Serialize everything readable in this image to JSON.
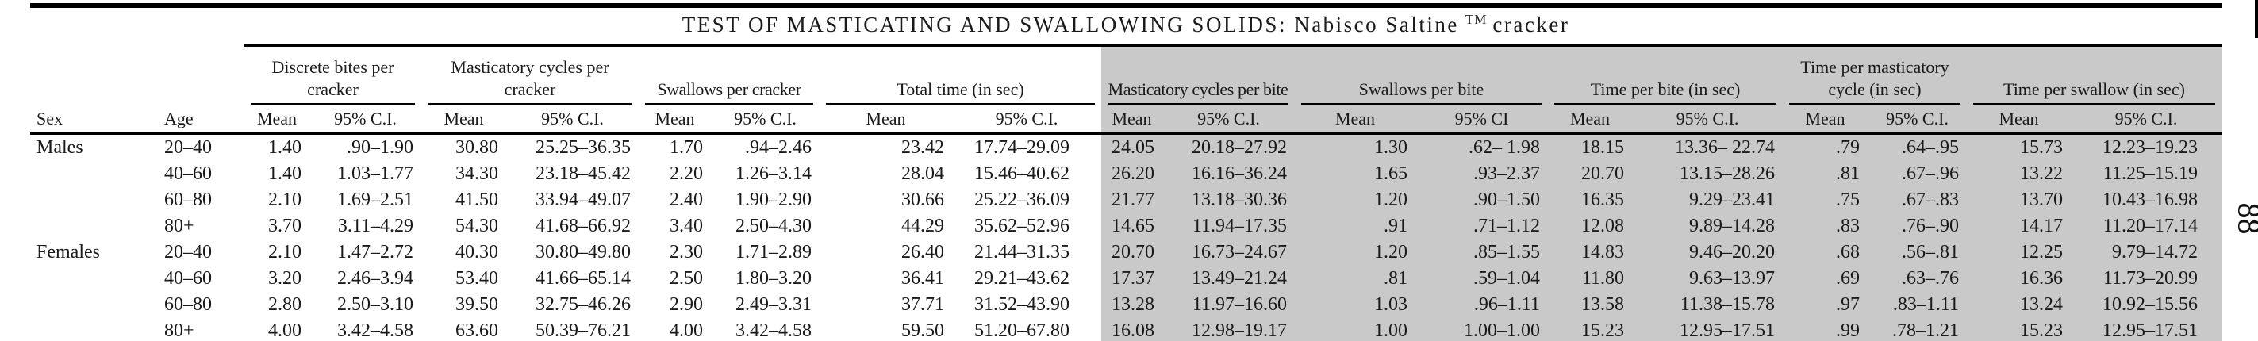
{
  "title": {
    "main": "TEST OF MASTICATING AND SWALLOWING SOLIDS: Nabisco Saltine",
    "trademark": "TM",
    "suffix": "cracker"
  },
  "page_number": "88",
  "colors": {
    "shaded_column_bg": "#c9c9c9",
    "rule": "#000000",
    "text": "#1a1a1a"
  },
  "header": {
    "sex_label": "Sex",
    "age_label": "Age",
    "groups": [
      {
        "label": "Discrete bites per cracker",
        "mean": "Mean",
        "ci": "95% C.I.",
        "shaded": false
      },
      {
        "label": "Masticatory cycles per cracker",
        "mean": "Mean",
        "ci": "95% C.I.",
        "shaded": false
      },
      {
        "label": "Swallows per cracker",
        "mean": "Mean",
        "ci": "95% C.I.",
        "shaded": false
      },
      {
        "label": "Total time (in sec)",
        "mean": "Mean",
        "ci": "95% C.I.",
        "shaded": false
      },
      {
        "label": "Masticatory cycles per bite",
        "mean": "Mean",
        "ci": "95% C.I.",
        "shaded": true
      },
      {
        "label": "Swallows per bite",
        "mean": "Mean",
        "ci": "95% CI",
        "shaded": true
      },
      {
        "label": "Time per bite (in sec)",
        "mean": "Mean",
        "ci": "95% C.I.",
        "shaded": true
      },
      {
        "label": "Time per masticatory cycle (in sec)",
        "mean": "Mean",
        "ci": "95% C.I.",
        "shaded": true
      },
      {
        "label": "Time per swallow (in sec)",
        "mean": "Mean",
        "ci": "95% C.I.",
        "shaded": true
      }
    ]
  },
  "rows": [
    {
      "sex": "Males",
      "age": "20–40",
      "v": [
        "1.40",
        ".90–1.90",
        "30.80",
        "25.25–36.35",
        "1.70",
        ".94–2.46",
        "23.42",
        "17.74–29.09",
        "24.05",
        "20.18–27.92",
        "1.30",
        ".62– 1.98",
        "18.15",
        "13.36– 22.74",
        ".79",
        ".64–.95",
        "15.73",
        "12.23–19.23"
      ]
    },
    {
      "sex": "",
      "age": "40–60",
      "v": [
        "1.40",
        "1.03–1.77",
        "34.30",
        "23.18–45.42",
        "2.20",
        "1.26–3.14",
        "28.04",
        "15.46–40.62",
        "26.20",
        "16.16–36.24",
        "1.65",
        ".93–2.37",
        "20.70",
        "13.15–28.26",
        ".81",
        ".67–.96",
        "13.22",
        "11.25–15.19"
      ]
    },
    {
      "sex": "",
      "age": "60–80",
      "v": [
        "2.10",
        "1.69–2.51",
        "41.50",
        "33.94–49.07",
        "2.40",
        "1.90–2.90",
        "30.66",
        "25.22–36.09",
        "21.77",
        "13.18–30.36",
        "1.20",
        ".90–1.50",
        "16.35",
        "9.29–23.41",
        ".75",
        ".67–.83",
        "13.70",
        "10.43–16.98"
      ]
    },
    {
      "sex": "",
      "age": "80+",
      "v": [
        "3.70",
        "3.11–4.29",
        "54.30",
        "41.68–66.92",
        "3.40",
        "2.50–4.30",
        "44.29",
        "35.62–52.96",
        "14.65",
        "11.94–17.35",
        ".91",
        ".71–1.12",
        "12.08",
        "9.89–14.28",
        ".83",
        ".76–.90",
        "14.17",
        "11.20–17.14"
      ]
    },
    {
      "sex": "Females",
      "age": "20–40",
      "v": [
        "2.10",
        "1.47–2.72",
        "40.30",
        "30.80–49.80",
        "2.30",
        "1.71–2.89",
        "26.40",
        "21.44–31.35",
        "20.70",
        "16.73–24.67",
        "1.20",
        ".85–1.55",
        "14.83",
        "9.46–20.20",
        ".68",
        ".56–.81",
        "12.25",
        "9.79–14.72"
      ]
    },
    {
      "sex": "",
      "age": "40–60",
      "v": [
        "3.20",
        "2.46–3.94",
        "53.40",
        "41.66–65.14",
        "2.50",
        "1.80–3.20",
        "36.41",
        "29.21–43.62",
        "17.37",
        "13.49–21.24",
        ".81",
        ".59–1.04",
        "11.80",
        "9.63–13.97",
        ".69",
        ".63–.76",
        "16.36",
        "11.73–20.99"
      ]
    },
    {
      "sex": "",
      "age": "60–80",
      "v": [
        "2.80",
        "2.50–3.10",
        "39.50",
        "32.75–46.26",
        "2.90",
        "2.49–3.31",
        "37.71",
        "31.52–43.90",
        "13.28",
        "11.97–16.60",
        "1.03",
        ".96–1.11",
        "13.58",
        "11.38–15.78",
        ".97",
        ".83–1.11",
        "13.24",
        "10.92–15.56"
      ]
    },
    {
      "sex": "",
      "age": "80+",
      "v": [
        "4.00",
        "3.42–4.58",
        "63.60",
        "50.39–76.21",
        "4.00",
        "3.42–4.58",
        "59.50",
        "51.20–67.80",
        "16.08",
        "12.98–19.17",
        "1.00",
        "1.00–1.00",
        "15.23",
        "12.95–17.51",
        ".99",
        ".78–1.21",
        "15.23",
        "12.95–17.51"
      ]
    }
  ]
}
